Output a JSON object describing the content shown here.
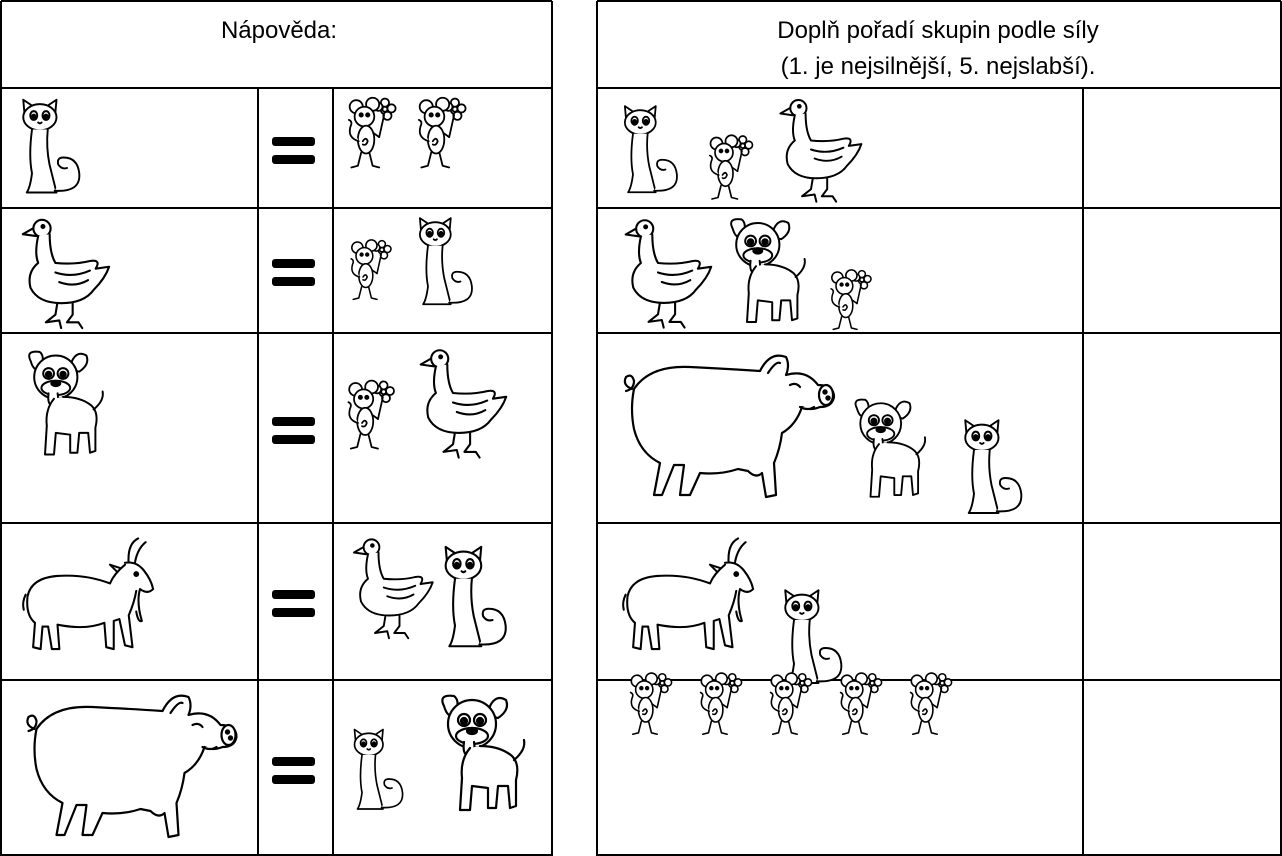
{
  "hint": {
    "title": "Nápověda:"
  },
  "task": {
    "title_line1": "Doplň pořadí skupin podle síly",
    "title_line2": "(1. je nejsilnější, 5. nejslabší)."
  }
}
